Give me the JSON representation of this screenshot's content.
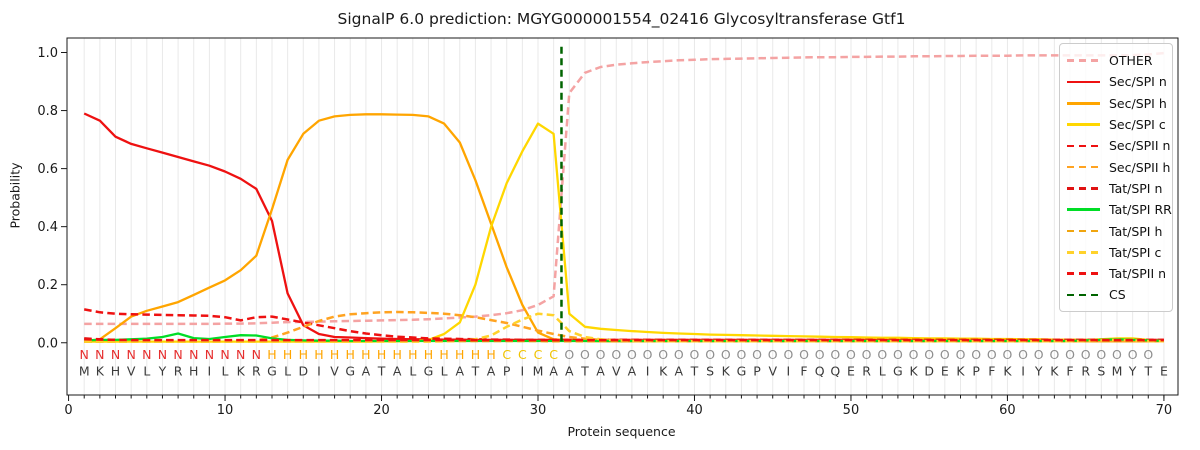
{
  "chart_data": {
    "type": "line",
    "title": "SignalP 6.0 prediction: MGYG000001554_02416 Glycosyltransferase Gtf1",
    "xlabel": "Protein sequence",
    "ylabel": "Probability",
    "xticks": [
      "0",
      "10",
      "20",
      "30",
      "40",
      "50",
      "60",
      "70"
    ],
    "yticks": [
      "0.0",
      "0.2",
      "0.4",
      "0.6",
      "0.8",
      "1.0"
    ],
    "xlim": [
      -0.1,
      70.9
    ],
    "ylim": [
      -0.18,
      1.05
    ],
    "grid": "vertical-per-residue-only",
    "grid_color": "#e9e9e9",
    "legend_position": "upper-right",
    "sequence": "MKHVLYRHILKRGLDIVGATALGLATAPIMAATAVAIKATSKGPVIFQQERLGKDEKPFKIYKFRSMYTE",
    "regions": "NNNNNNNNNNNNHHHHHHHHHHHHHHHCCCCOOOOOOOOOOOOOOOOOOOOOOOOOOOOOOOOOOOOOO",
    "region_colors": {
      "N": "#e62e2e",
      "H": "#ffa500",
      "C": "#f0c300",
      "O": "#8f8f8f"
    },
    "sequence_color": "#3a3a3a",
    "cs": {
      "label": "CS",
      "position": 31.5,
      "color": "#006400",
      "dash": true
    },
    "series": [
      {
        "name": "OTHER",
        "color": "#f4a3a3",
        "dash": true,
        "values": [
          0.065,
          0.065,
          0.065,
          0.065,
          0.065,
          0.065,
          0.065,
          0.065,
          0.065,
          0.066,
          0.066,
          0.067,
          0.069,
          0.071,
          0.072,
          0.073,
          0.074,
          0.075,
          0.076,
          0.077,
          0.078,
          0.079,
          0.081,
          0.084,
          0.087,
          0.09,
          0.095,
          0.102,
          0.112,
          0.13,
          0.16,
          0.86,
          0.93,
          0.95,
          0.958,
          0.963,
          0.967,
          0.97,
          0.973,
          0.975,
          0.977,
          0.978,
          0.979,
          0.98,
          0.981,
          0.982,
          0.983,
          0.984,
          0.984,
          0.985,
          0.985,
          0.986,
          0.986,
          0.987,
          0.987,
          0.988,
          0.988,
          0.989,
          0.989,
          0.989,
          0.99,
          0.99,
          0.99,
          0.99,
          0.99,
          0.99,
          0.99,
          0.991,
          0.993,
          0.998
        ]
      },
      {
        "name": "Sec/SPI n",
        "color": "#ee1111",
        "dash": false,
        "values": [
          0.79,
          0.765,
          0.71,
          0.685,
          0.67,
          0.655,
          0.64,
          0.625,
          0.61,
          0.59,
          0.565,
          0.53,
          0.42,
          0.17,
          0.06,
          0.03,
          0.02,
          0.018,
          0.016,
          0.014,
          0.013,
          0.012,
          0.012,
          0.011,
          0.011,
          0.01,
          0.01,
          0.01,
          0.01,
          0.01,
          0.01,
          0.01,
          0.01,
          0.01,
          0.01,
          0.01,
          0.01,
          0.01,
          0.01,
          0.01,
          0.01,
          0.01,
          0.01,
          0.01,
          0.01,
          0.01,
          0.01,
          0.01,
          0.01,
          0.01,
          0.01,
          0.01,
          0.01,
          0.01,
          0.01,
          0.01,
          0.01,
          0.01,
          0.01,
          0.01,
          0.01,
          0.01,
          0.01,
          0.01,
          0.01,
          0.01,
          0.01,
          0.01,
          0.01,
          0.01
        ]
      },
      {
        "name": "Sec/SPI h",
        "color": "#ffa500",
        "dash": false,
        "values": [
          0.005,
          0.012,
          0.05,
          0.09,
          0.11,
          0.125,
          0.14,
          0.165,
          0.19,
          0.215,
          0.25,
          0.3,
          0.46,
          0.63,
          0.72,
          0.765,
          0.78,
          0.785,
          0.787,
          0.787,
          0.786,
          0.785,
          0.78,
          0.755,
          0.69,
          0.56,
          0.41,
          0.26,
          0.13,
          0.035,
          0.012,
          0.008,
          0.006,
          0.005,
          0.005,
          0.005,
          0.005,
          0.005,
          0.005,
          0.005,
          0.005,
          0.005,
          0.005,
          0.005,
          0.005,
          0.005,
          0.005,
          0.005,
          0.005,
          0.005,
          0.005,
          0.005,
          0.005,
          0.005,
          0.005,
          0.005,
          0.005,
          0.005,
          0.005,
          0.005,
          0.005,
          0.005,
          0.005,
          0.005,
          0.005,
          0.005,
          0.005,
          0.005,
          0.005,
          0.005
        ]
      },
      {
        "name": "Sec/SPI c",
        "color": "#ffd700",
        "dash": false,
        "values": [
          0.004,
          0.004,
          0.004,
          0.004,
          0.004,
          0.004,
          0.004,
          0.004,
          0.004,
          0.004,
          0.004,
          0.004,
          0.004,
          0.004,
          0.004,
          0.004,
          0.004,
          0.004,
          0.004,
          0.005,
          0.005,
          0.006,
          0.01,
          0.03,
          0.07,
          0.2,
          0.4,
          0.55,
          0.66,
          0.755,
          0.72,
          0.1,
          0.055,
          0.048,
          0.044,
          0.04,
          0.037,
          0.034,
          0.032,
          0.03,
          0.028,
          0.027,
          0.026,
          0.025,
          0.024,
          0.023,
          0.022,
          0.021,
          0.02,
          0.019,
          0.018,
          0.017,
          0.017,
          0.016,
          0.015,
          0.015,
          0.014,
          0.014,
          0.013,
          0.013,
          0.012,
          0.012,
          0.011,
          0.011,
          0.01,
          0.012,
          0.015,
          0.015,
          0.01,
          0.006
        ]
      },
      {
        "name": "Sec/SPII n",
        "color": "#ee1111",
        "dash": true,
        "values": [
          0.115,
          0.105,
          0.1,
          0.098,
          0.097,
          0.096,
          0.095,
          0.094,
          0.093,
          0.088,
          0.077,
          0.088,
          0.09,
          0.08,
          0.07,
          0.06,
          0.05,
          0.04,
          0.032,
          0.026,
          0.021,
          0.018,
          0.015,
          0.014,
          0.013,
          0.012,
          0.011,
          0.011,
          0.01,
          0.01,
          0.01,
          0.01,
          0.01,
          0.01,
          0.01,
          0.01,
          0.01,
          0.01,
          0.01,
          0.01,
          0.01,
          0.01,
          0.01,
          0.01,
          0.01,
          0.01,
          0.01,
          0.01,
          0.01,
          0.01,
          0.01,
          0.01,
          0.01,
          0.01,
          0.01,
          0.01,
          0.01,
          0.01,
          0.01,
          0.01,
          0.01,
          0.01,
          0.01,
          0.01,
          0.01,
          0.01,
          0.01,
          0.01,
          0.01,
          0.01
        ]
      },
      {
        "name": "Sec/SPII h",
        "color": "#ffa321",
        "dash": true,
        "values": [
          0.004,
          0.004,
          0.004,
          0.004,
          0.004,
          0.004,
          0.004,
          0.004,
          0.004,
          0.004,
          0.005,
          0.008,
          0.018,
          0.035,
          0.055,
          0.075,
          0.09,
          0.098,
          0.102,
          0.105,
          0.106,
          0.105,
          0.103,
          0.1,
          0.095,
          0.088,
          0.078,
          0.068,
          0.055,
          0.042,
          0.03,
          0.02,
          0.014,
          0.01,
          0.008,
          0.007,
          0.006,
          0.006,
          0.006,
          0.006,
          0.006,
          0.006,
          0.006,
          0.006,
          0.006,
          0.006,
          0.006,
          0.006,
          0.006,
          0.006,
          0.006,
          0.006,
          0.006,
          0.006,
          0.006,
          0.006,
          0.006,
          0.006,
          0.006,
          0.006,
          0.006,
          0.006,
          0.006,
          0.006,
          0.006,
          0.006,
          0.006,
          0.006,
          0.006,
          0.006
        ]
      },
      {
        "name": "Tat/SPI n",
        "color": "#e01212",
        "dash": true,
        "values": [
          0.015,
          0.012,
          0.01,
          0.009,
          0.009,
          0.008,
          0.008,
          0.008,
          0.008,
          0.008,
          0.008,
          0.008,
          0.008,
          0.008,
          0.008,
          0.008,
          0.008,
          0.008,
          0.008,
          0.008,
          0.008,
          0.008,
          0.008,
          0.008,
          0.008,
          0.008,
          0.008,
          0.008,
          0.008,
          0.008,
          0.008,
          0.008,
          0.008,
          0.008,
          0.008,
          0.008,
          0.008,
          0.008,
          0.008,
          0.008,
          0.008,
          0.008,
          0.008,
          0.008,
          0.008,
          0.008,
          0.008,
          0.008,
          0.008,
          0.008,
          0.008,
          0.008,
          0.008,
          0.008,
          0.008,
          0.008,
          0.008,
          0.008,
          0.008,
          0.008,
          0.008,
          0.008,
          0.008,
          0.008,
          0.008,
          0.008,
          0.008,
          0.008,
          0.008,
          0.008
        ]
      },
      {
        "name": "Tat/SPI RR",
        "color": "#00dd26",
        "dash": false,
        "values": [
          0.008,
          0.01,
          0.01,
          0.012,
          0.014,
          0.02,
          0.032,
          0.016,
          0.013,
          0.02,
          0.026,
          0.025,
          0.015,
          0.01,
          0.008,
          0.007,
          0.007,
          0.006,
          0.006,
          0.006,
          0.006,
          0.006,
          0.006,
          0.006,
          0.006,
          0.006,
          0.006,
          0.006,
          0.006,
          0.006,
          0.006,
          0.006,
          0.006,
          0.006,
          0.006,
          0.006,
          0.006,
          0.006,
          0.006,
          0.006,
          0.006,
          0.006,
          0.006,
          0.006,
          0.006,
          0.006,
          0.006,
          0.006,
          0.006,
          0.006,
          0.006,
          0.006,
          0.006,
          0.006,
          0.006,
          0.006,
          0.006,
          0.006,
          0.006,
          0.006,
          0.006,
          0.006,
          0.006,
          0.006,
          0.008,
          0.01,
          0.012,
          0.01,
          0.008,
          0.006
        ]
      },
      {
        "name": "Tat/SPI h",
        "color": "#f0a50f",
        "dash": true,
        "values": [
          0.004,
          0.004,
          0.004,
          0.004,
          0.004,
          0.004,
          0.004,
          0.004,
          0.004,
          0.004,
          0.004,
          0.004,
          0.005,
          0.005,
          0.006,
          0.006,
          0.006,
          0.006,
          0.006,
          0.006,
          0.006,
          0.006,
          0.006,
          0.006,
          0.006,
          0.006,
          0.006,
          0.006,
          0.006,
          0.006,
          0.005,
          0.005,
          0.005,
          0.005,
          0.005,
          0.005,
          0.005,
          0.005,
          0.005,
          0.005,
          0.005,
          0.005,
          0.005,
          0.005,
          0.005,
          0.005,
          0.005,
          0.005,
          0.005,
          0.005,
          0.005,
          0.005,
          0.005,
          0.005,
          0.005,
          0.005,
          0.005,
          0.005,
          0.005,
          0.005,
          0.005,
          0.005,
          0.005,
          0.005,
          0.005,
          0.005,
          0.005,
          0.005,
          0.005,
          0.005
        ]
      },
      {
        "name": "Tat/SPI c",
        "color": "#ffd22b",
        "dash": true,
        "values": [
          0.004,
          0.004,
          0.004,
          0.004,
          0.004,
          0.004,
          0.004,
          0.004,
          0.004,
          0.004,
          0.004,
          0.004,
          0.004,
          0.004,
          0.004,
          0.004,
          0.004,
          0.004,
          0.004,
          0.004,
          0.004,
          0.004,
          0.004,
          0.005,
          0.006,
          0.012,
          0.025,
          0.055,
          0.08,
          0.1,
          0.095,
          0.04,
          0.02,
          0.012,
          0.008,
          0.006,
          0.006,
          0.005,
          0.005,
          0.005,
          0.005,
          0.005,
          0.005,
          0.005,
          0.005,
          0.005,
          0.005,
          0.005,
          0.005,
          0.005,
          0.005,
          0.005,
          0.005,
          0.005,
          0.005,
          0.005,
          0.005,
          0.005,
          0.005,
          0.005,
          0.005,
          0.005,
          0.005,
          0.005,
          0.006,
          0.008,
          0.01,
          0.008,
          0.006,
          0.005
        ]
      },
      {
        "name": "Tat/SPII n",
        "color": "#ee1111",
        "dash": true,
        "values": [
          0.012,
          0.011,
          0.01,
          0.009,
          0.009,
          0.009,
          0.009,
          0.009,
          0.009,
          0.009,
          0.009,
          0.009,
          0.009,
          0.009,
          0.009,
          0.009,
          0.009,
          0.009,
          0.009,
          0.009,
          0.009,
          0.009,
          0.009,
          0.009,
          0.009,
          0.009,
          0.009,
          0.009,
          0.009,
          0.009,
          0.009,
          0.009,
          0.009,
          0.009,
          0.009,
          0.009,
          0.009,
          0.009,
          0.009,
          0.009,
          0.009,
          0.009,
          0.009,
          0.009,
          0.009,
          0.009,
          0.009,
          0.009,
          0.009,
          0.009,
          0.009,
          0.009,
          0.009,
          0.009,
          0.009,
          0.009,
          0.009,
          0.009,
          0.009,
          0.009,
          0.009,
          0.009,
          0.009,
          0.009,
          0.009,
          0.009,
          0.009,
          0.009,
          0.009,
          0.009
        ]
      }
    ]
  }
}
